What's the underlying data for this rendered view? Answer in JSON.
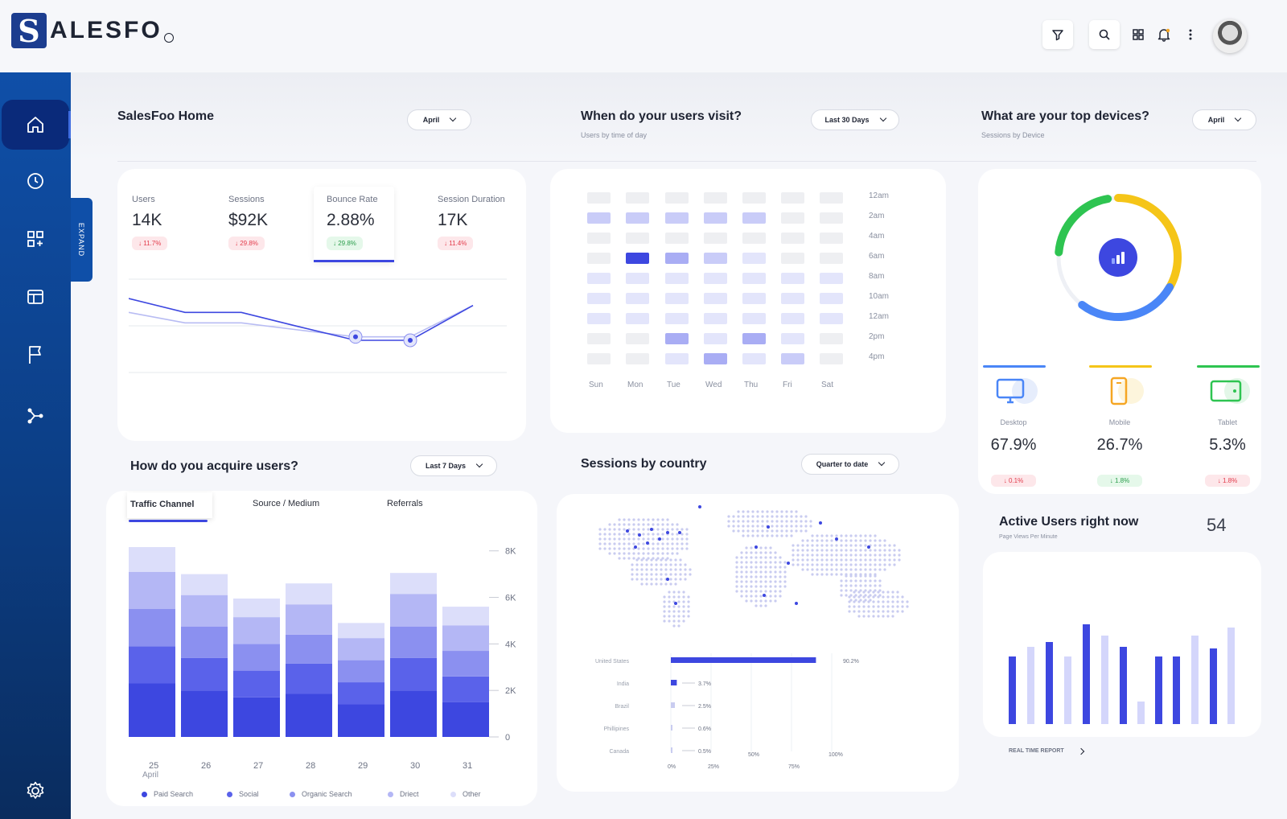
{
  "app": {
    "logo_letter": "S",
    "logo_text": "ALESFO"
  },
  "header": {
    "icons": [
      "filter-icon",
      "search-icon",
      "apps-grid-icon",
      "bell-icon",
      "more-vertical-icon"
    ]
  },
  "sidebar": {
    "items": [
      "home-icon",
      "clock-icon",
      "dashboard-add-icon",
      "layout-icon",
      "flag-icon",
      "share-icon"
    ],
    "settings_icon": "gear-icon",
    "expand_label": "EXPAND"
  },
  "home": {
    "title": "SalesFoo Home",
    "dropdown": "April"
  },
  "stats": [
    {
      "label": "Users",
      "value": "14K",
      "change": "↓ 11.7%",
      "trend": "down"
    },
    {
      "label": "Sessions",
      "value": "$92K",
      "change": "↓ 29.8%",
      "trend": "down"
    },
    {
      "label": "Bounce Rate",
      "value": "2.88%",
      "change": "↓ 29.8%",
      "trend": "up"
    },
    {
      "label": "Session Duration",
      "value": "17K",
      "change": "↓ 11.4%",
      "trend": "down"
    }
  ],
  "visit": {
    "title": "When do your users visit?",
    "subtitle": "Users by time of day",
    "dropdown": "Last 30 Days",
    "days": [
      "Sun",
      "Mon",
      "Tue",
      "Wed",
      "Thu",
      "Fri",
      "Sat"
    ],
    "hours": [
      "12am",
      "2am",
      "4am",
      "6am",
      "8am",
      "10am",
      "12am",
      "2pm",
      "4pm"
    ]
  },
  "devices": {
    "title": "What are your top devices?",
    "subtitle": "Sessions by Device",
    "dropdown": "April",
    "items": [
      {
        "label": "Desktop",
        "value": "67.9%",
        "change": "↓ 0.1%",
        "trend": "down",
        "color": "#4a86f7"
      },
      {
        "label": "Mobile",
        "value": "26.7%",
        "change": "↓ 1.8%",
        "trend": "up",
        "color": "#f5c518"
      },
      {
        "label": "Tablet",
        "value": "5.3%",
        "change": "↓ 1.8%",
        "trend": "down",
        "color": "#2ec451"
      }
    ]
  },
  "acquire": {
    "title": "How do you acquire users?",
    "dropdown": "Last 7 Days",
    "tabs": [
      "Traffic Channel",
      "Source / Medium",
      "Referrals"
    ],
    "month_label": "April",
    "legend": [
      {
        "name": "Paid Search",
        "color": "#3d47e0"
      },
      {
        "name": "Social",
        "color": "#5a62ea"
      },
      {
        "name": "Organic Search",
        "color": "#8b90f0"
      },
      {
        "name": "Driect",
        "color": "#b4b7f5"
      },
      {
        "name": "Other",
        "color": "#dcdefa"
      }
    ]
  },
  "country": {
    "title": "Sessions by country",
    "dropdown": "Quarter to date",
    "rows": [
      {
        "name": "United States",
        "value": 90.2,
        "label": "90.2%"
      },
      {
        "name": "India",
        "value": 3.7,
        "label": "3.7%"
      },
      {
        "name": "Brazil",
        "value": 2.5,
        "label": "2.5%"
      },
      {
        "name": "Phillipines",
        "value": 0.6,
        "label": "0.6%"
      },
      {
        "name": "Canada",
        "value": 0.5,
        "label": "0.5%"
      }
    ],
    "axis": [
      "0%",
      "25%",
      "50%",
      "75%",
      "100%"
    ]
  },
  "active": {
    "title": "Active Users right now",
    "subtitle": "Page Views Per Minute",
    "count": "54",
    "link": "REAL TIME REPORT"
  },
  "chart_data": [
    {
      "type": "line",
      "series": [
        {
          "values": [
            20,
            17,
            17,
            15,
            13,
            13,
            22
          ]
        },
        {
          "values": [
            24,
            20,
            20,
            16,
            12,
            12,
            22
          ]
        }
      ],
      "ylim": [
        0,
        30
      ]
    },
    {
      "type": "heatmap",
      "x": [
        "Sun",
        "Mon",
        "Tue",
        "Wed",
        "Thu",
        "Fri",
        "Sat"
      ],
      "y": [
        "12am",
        "2am",
        "4am",
        "6am",
        "8am",
        "10am",
        "12am",
        "2pm",
        "4pm"
      ],
      "values": [
        [
          0,
          0,
          0,
          0,
          0,
          0,
          0
        ],
        [
          2,
          2,
          2,
          2,
          2,
          0,
          0
        ],
        [
          0,
          0,
          0,
          0,
          0,
          0,
          0
        ],
        [
          0,
          5,
          3,
          2,
          1,
          0,
          0
        ],
        [
          1,
          1,
          1,
          1,
          1,
          1,
          1
        ],
        [
          1,
          1,
          1,
          1,
          1,
          1,
          1
        ],
        [
          1,
          1,
          1,
          1,
          1,
          1,
          1
        ],
        [
          0,
          0,
          3,
          1,
          3,
          1,
          0
        ],
        [
          0,
          0,
          1,
          3,
          1,
          2,
          0
        ]
      ]
    },
    {
      "type": "pie",
      "categories": [
        "Desktop",
        "Mobile",
        "Tablet"
      ],
      "values": [
        67.9,
        26.7,
        5.3
      ]
    },
    {
      "type": "bar",
      "stacked": true,
      "categories": [
        "25",
        "26",
        "27",
        "28",
        "29",
        "30",
        "31"
      ],
      "series": [
        {
          "name": "Paid Search",
          "values": [
            2300,
            2000,
            1700,
            1850,
            1400,
            2000,
            1500
          ]
        },
        {
          "name": "Social",
          "values": [
            1600,
            1400,
            1150,
            1300,
            950,
            1400,
            1100
          ]
        },
        {
          "name": "Organic Search",
          "values": [
            1600,
            1350,
            1150,
            1250,
            950,
            1350,
            1100
          ]
        },
        {
          "name": "Driect",
          "values": [
            1600,
            1350,
            1150,
            1300,
            950,
            1400,
            1100
          ]
        },
        {
          "name": "Other",
          "values": [
            1100,
            900,
            800,
            900,
            650,
            900,
            800
          ]
        }
      ],
      "yticks": [
        "0",
        "2K",
        "4K",
        "6K",
        "8K"
      ],
      "ylim": [
        0,
        8000
      ]
    },
    {
      "type": "bar",
      "orientation": "horizontal",
      "categories": [
        "United States",
        "India",
        "Brazil",
        "Phillipines",
        "Canada"
      ],
      "values": [
        90.2,
        3.7,
        2.5,
        0.6,
        0.5
      ],
      "ylim": [
        0,
        100
      ]
    },
    {
      "type": "bar",
      "values": [
        42,
        48,
        51,
        42,
        62,
        55,
        48,
        42,
        14,
        42,
        55,
        47,
        60,
        52
      ],
      "ylim": [
        0,
        70
      ]
    }
  ]
}
